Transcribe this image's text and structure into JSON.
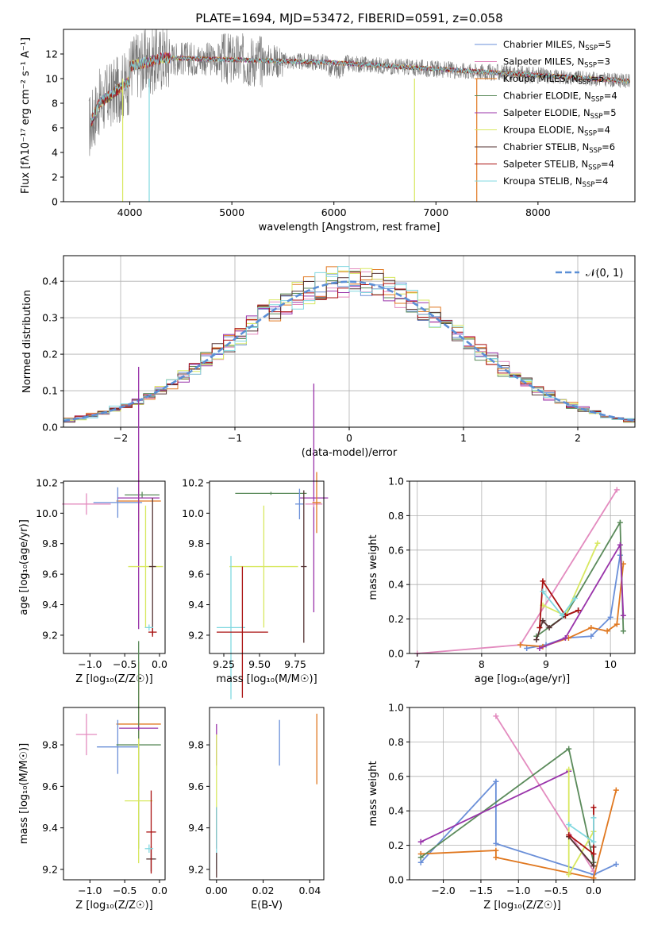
{
  "title": "PLATE=1694, MJD=53472, FIBERID=0591, z=0.058",
  "colors": {
    "Chabrier MILES": "#6a8fd8",
    "Salpeter MILES": "#e38bbf",
    "Kroupa MILES": "#e07820",
    "Chabrier ELODIE": "#5a8a5a",
    "Salpeter ELODIE": "#9933aa",
    "Kroupa ELODIE": "#d8e860",
    "Chabrier STELIB": "#553333",
    "Salpeter STELIB": "#aa1111",
    "Kroupa STELIB": "#80d8e0"
  },
  "chart_data": [
    {
      "id": "spectrum",
      "type": "line",
      "xlabel": "wavelength [Angstrom, rest frame]",
      "ylabel": "Flux [fλ10⁻¹⁷ erg cm⁻² s⁻¹ A⁻¹]",
      "xlim": [
        3350,
        8950
      ],
      "ylim": [
        0,
        14
      ],
      "xticks": [
        4000,
        5000,
        6000,
        7000,
        8000
      ],
      "yticks": [
        0,
        2,
        4,
        6,
        8,
        10,
        12
      ],
      "data_color": "#777777",
      "spectrum_x_range": [
        3600,
        8900
      ],
      "legend_position": "upper-right",
      "legend": [
        {
          "model": "Chabrier MILES",
          "base": "Chabrier MILES, N",
          "sub": "SSP",
          "tail": "=5"
        },
        {
          "model": "Salpeter MILES",
          "base": "Salpeter MILES, N",
          "sub": "SSP",
          "tail": "=3"
        },
        {
          "model": "Kroupa MILES",
          "base": "Kroupa MILES, N",
          "sub": "SSP",
          "tail": "=5"
        },
        {
          "model": "Chabrier ELODIE",
          "base": "Chabrier ELODIE, N",
          "sub": "SSP",
          "tail": "=4"
        },
        {
          "model": "Salpeter ELODIE",
          "base": "Salpeter ELODIE, N",
          "sub": "SSP",
          "tail": "=5"
        },
        {
          "model": "Kroupa ELODIE",
          "base": "Kroupa ELODIE, N",
          "sub": "SSP",
          "tail": "=4"
        },
        {
          "model": "Chabrier STELIB",
          "base": "Chabrier STELIB, N",
          "sub": "SSP",
          "tail": "=6"
        },
        {
          "model": "Salpeter STELIB",
          "base": "Salpeter STELIB, N",
          "sub": "SSP",
          "tail": "=4"
        },
        {
          "model": "Kroupa STELIB",
          "base": "Kroupa STELIB, N",
          "sub": "SSP",
          "tail": "=4"
        }
      ]
    },
    {
      "id": "residuals",
      "type": "line",
      "xlabel": "(data-model)/error",
      "ylabel": "Normed distribution",
      "xlim": [
        -2.5,
        2.5
      ],
      "ylim": [
        0,
        0.47
      ],
      "xticks": [
        -2,
        -1,
        0,
        1,
        2
      ],
      "yticks": [
        0.0,
        0.1,
        0.2,
        0.3,
        0.4
      ],
      "grid": true,
      "bin_width": 0.1,
      "gaussian_legend": "𝒩(0, 1)",
      "legend_position": "upper-right"
    },
    {
      "id": "age-vs-Z",
      "type": "scatter",
      "xlabel": "Z [log₁₀(Z/Z☉)]",
      "ylabel": "age  [log₁₀(age/yr)]",
      "xlim": [
        -1.38,
        0.08
      ],
      "ylim": [
        9.08,
        10.21
      ],
      "xticks": [
        -1.0,
        -0.5,
        0.0
      ],
      "yticks": [
        9.2,
        9.4,
        9.6,
        9.8,
        10.0,
        10.2
      ],
      "errorbars": [
        {
          "model": "Salpeter MILES",
          "x": -1.05,
          "y": 10.06,
          "xerr": 0.35,
          "yerr": 0.07
        },
        {
          "model": "Kroupa MILES",
          "x": -0.3,
          "y": 10.08,
          "xerr": 0.32,
          "yerr": 0.2
        },
        {
          "model": "Chabrier MILES",
          "x": -0.6,
          "y": 10.07,
          "xerr": 0.35,
          "yerr": 0.1
        },
        {
          "model": "Chabrier ELODIE",
          "x": -0.25,
          "y": 10.12,
          "xerr": 0.25,
          "yerr": 0.02
        },
        {
          "model": "Salpeter ELODIE",
          "x": -0.3,
          "y": 10.1,
          "xerr": 0.3,
          "yerr": 0.86
        },
        {
          "model": "Kroupa ELODIE",
          "x": -0.2,
          "y": 9.65,
          "xerr": 0.25,
          "yerr": 0.4
        },
        {
          "model": "Chabrier STELIB",
          "x": -0.1,
          "y": 9.65,
          "xerr": 0.05,
          "yerr": 0.45
        },
        {
          "model": "Salpeter STELIB",
          "x": -0.1,
          "y": 9.22,
          "xerr": 0.06,
          "yerr": 0.03
        },
        {
          "model": "Kroupa STELIB",
          "x": -0.15,
          "y": 9.25,
          "xerr": 0.06,
          "yerr": 0.02
        }
      ]
    },
    {
      "id": "age-vs-mass",
      "type": "scatter",
      "xlabel": "mass [log₁₀(M/M☉)]",
      "ylabel": "",
      "xlim": [
        9.15,
        9.95
      ],
      "ylim": [
        9.08,
        10.21
      ],
      "xticks": [
        9.25,
        9.5,
        9.75
      ],
      "yticks": [
        9.2,
        9.4,
        9.6,
        9.8,
        10.0,
        10.2
      ],
      "errorbars": [
        {
          "model": "Chabrier ELODIE",
          "x": 9.58,
          "y": 10.13,
          "xerr": 0.25,
          "yerr": 0.01
        },
        {
          "model": "Salpeter ELODIE",
          "x": 9.88,
          "y": 10.1,
          "xerr": 0.1,
          "yerr": 0.75
        },
        {
          "model": "Salpeter MILES",
          "x": 9.88,
          "y": 10.06,
          "xerr": 0.06,
          "yerr": 0.02
        },
        {
          "model": "Kroupa MILES",
          "x": 9.9,
          "y": 10.07,
          "xerr": 0.03,
          "yerr": 0.2
        },
        {
          "model": "Chabrier MILES",
          "x": 9.78,
          "y": 10.06,
          "xerr": 0.03,
          "yerr": 0.1
        },
        {
          "model": "Kroupa ELODIE",
          "x": 9.53,
          "y": 9.65,
          "xerr": 0.24,
          "yerr": 0.4
        },
        {
          "model": "Chabrier STELIB",
          "x": 9.81,
          "y": 9.65,
          "xerr": 0.02,
          "yerr": 0.5
        },
        {
          "model": "Kroupa STELIB",
          "x": 9.3,
          "y": 9.25,
          "xerr": 0.1,
          "yerr": 0.47
        },
        {
          "model": "Salpeter STELIB",
          "x": 9.38,
          "y": 9.22,
          "xerr": 0.18,
          "yerr": 0.43
        }
      ]
    },
    {
      "id": "mass-weight-vs-age",
      "type": "line",
      "xlabel": "age  [log₁₀(age/yr)]",
      "ylabel": "mass weight",
      "xlim": [
        6.88,
        10.38
      ],
      "ylim": [
        0,
        1.0
      ],
      "xticks": [
        7,
        8,
        9,
        10
      ],
      "yticks": [
        0.0,
        0.2,
        0.4,
        0.6,
        0.8,
        1.0
      ],
      "grid": true,
      "series": [
        {
          "model": "Salpeter MILES",
          "x": [
            7.0,
            8.6,
            10.1
          ],
          "y": [
            0.0,
            0.05,
            0.95
          ]
        },
        {
          "model": "Chabrier MILES",
          "x": [
            8.7,
            9.0,
            9.3,
            9.7,
            10.0,
            10.15
          ],
          "y": [
            0.03,
            0.05,
            0.09,
            0.1,
            0.21,
            0.57
          ]
        },
        {
          "model": "Kroupa MILES",
          "x": [
            8.6,
            8.95,
            9.35,
            9.7,
            9.95,
            10.1,
            10.2
          ],
          "y": [
            0.05,
            0.04,
            0.09,
            0.15,
            0.13,
            0.17,
            0.52
          ]
        },
        {
          "model": "Chabrier ELODIE",
          "x": [
            8.85,
            9.3,
            10.15,
            10.2
          ],
          "y": [
            0.1,
            0.22,
            0.76,
            0.13
          ]
        },
        {
          "model": "Salpeter ELODIE",
          "x": [
            8.9,
            9.3,
            10.15,
            10.2
          ],
          "y": [
            0.03,
            0.09,
            0.63,
            0.22
          ]
        },
        {
          "model": "Kroupa ELODIE",
          "x": [
            8.95,
            9.3,
            9.8
          ],
          "y": [
            0.28,
            0.22,
            0.64
          ]
        },
        {
          "model": "Chabrier STELIB",
          "x": [
            8.85,
            8.95,
            9.05,
            9.3,
            9.5
          ],
          "y": [
            0.08,
            0.19,
            0.15,
            0.22,
            0.25
          ]
        },
        {
          "model": "Salpeter STELIB",
          "x": [
            8.9,
            8.95,
            9.3,
            9.5
          ],
          "y": [
            0.15,
            0.42,
            0.22,
            0.25
          ]
        },
        {
          "model": "Kroupa STELIB",
          "x": [
            8.95,
            9.25,
            9.45
          ],
          "y": [
            0.36,
            0.22,
            0.32
          ]
        }
      ]
    },
    {
      "id": "mass-vs-Z",
      "type": "scatter",
      "xlabel": "Z [log₁₀(Z/Z☉)]",
      "ylabel": "mass [log₁₀(M/M☉)]",
      "xlim": [
        -1.38,
        0.08
      ],
      "ylim": [
        9.15,
        9.98
      ],
      "xticks": [
        -1.0,
        -0.5,
        0.0
      ],
      "yticks": [
        9.2,
        9.4,
        9.6,
        9.8
      ],
      "errorbars": [
        {
          "model": "Salpeter MILES",
          "x": -1.05,
          "y": 9.85,
          "xerr": 0.15,
          "yerr": 0.1
        },
        {
          "model": "Kroupa MILES",
          "x": -0.3,
          "y": 9.9,
          "xerr": 0.32,
          "yerr": 0.3
        },
        {
          "model": "Chabrier MILES",
          "x": -0.6,
          "y": 9.79,
          "xerr": 0.3,
          "yerr": 0.13
        },
        {
          "model": "Chabrier ELODIE",
          "x": -0.3,
          "y": 9.8,
          "xerr": 0.32,
          "yerr": 0.5
        },
        {
          "model": "Salpeter ELODIE",
          "x": -0.3,
          "y": 9.88,
          "xerr": 0.28,
          "yerr": 0.01
        },
        {
          "model": "Kroupa ELODIE",
          "x": -0.3,
          "y": 9.53,
          "xerr": 0.2,
          "yerr": 0.3
        },
        {
          "model": "Chabrier STELIB",
          "x": -0.12,
          "y": 9.25,
          "xerr": 0.07,
          "yerr": 0.06
        },
        {
          "model": "Salpeter STELIB",
          "x": -0.12,
          "y": 9.38,
          "xerr": 0.07,
          "yerr": 0.2
        },
        {
          "model": "Kroupa STELIB",
          "x": -0.15,
          "y": 9.3,
          "xerr": 0.06,
          "yerr": 0.02
        }
      ]
    },
    {
      "id": "mass-vs-EBV",
      "type": "scatter",
      "xlabel": "E(B-V)",
      "ylabel": "",
      "xlim": [
        -0.003,
        0.046
      ],
      "ylim": [
        9.15,
        9.98
      ],
      "xticks": [
        0.0,
        0.02,
        0.04
      ],
      "yticks": [
        9.2,
        9.4,
        9.6,
        9.8
      ],
      "errorbars": [
        {
          "model": "Chabrier MILES",
          "x": 0.027,
          "y": 9.81,
          "xerr": 0,
          "yerr": 0.11
        },
        {
          "model": "Kroupa MILES",
          "x": 0.043,
          "y": 9.78,
          "xerr": 0,
          "yerr": 0.17
        },
        {
          "model": "Salpeter ELODIE",
          "x": 0.0,
          "y": 9.8,
          "xerr": 0,
          "yerr": 0.1
        },
        {
          "model": "Kroupa ELODIE",
          "x": 0.0,
          "y": 9.6,
          "xerr": 0,
          "yerr": 0.25
        },
        {
          "model": "Salpeter STELIB",
          "x": 0.0,
          "y": 9.4,
          "xerr": 0,
          "yerr": 0.1
        },
        {
          "model": "Kroupa STELIB",
          "x": 0.0,
          "y": 9.35,
          "xerr": 0,
          "yerr": 0.15
        },
        {
          "model": "Chabrier STELIB",
          "x": 0.0,
          "y": 9.22,
          "xerr": 0,
          "yerr": 0.06
        }
      ]
    },
    {
      "id": "mass-weight-vs-Z",
      "type": "line",
      "xlabel": "Z [log₁₀(Z/Z☉)]",
      "ylabel": "mass weight",
      "xlim": [
        -2.45,
        0.55
      ],
      "ylim": [
        0,
        1.0
      ],
      "xticks": [
        -2.0,
        -1.5,
        -1.0,
        -0.5,
        0.0
      ],
      "yticks": [
        0.0,
        0.2,
        0.4,
        0.6,
        0.8,
        1.0
      ],
      "grid": true,
      "series": [
        {
          "model": "Chabrier MILES",
          "x": [
            -2.3,
            -1.3,
            -1.3,
            0.0,
            0.3
          ],
          "y": [
            0.1,
            0.57,
            0.21,
            0.03,
            0.09
          ]
        },
        {
          "model": "Salpeter MILES",
          "x": [
            -1.3,
            0.0
          ],
          "y": [
            0.95,
            0.05
          ]
        },
        {
          "model": "Kroupa MILES",
          "x": [
            -2.3,
            -1.3,
            -1.3,
            0.0,
            0.3
          ],
          "y": [
            0.15,
            0.17,
            0.13,
            0.01,
            0.52
          ]
        },
        {
          "model": "Chabrier ELODIE",
          "x": [
            -2.3,
            -0.33,
            0.0
          ],
          "y": [
            0.13,
            0.76,
            0.1
          ]
        },
        {
          "model": "Salpeter ELODIE",
          "x": [
            -2.3,
            -0.33
          ],
          "y": [
            0.22,
            0.63
          ]
        },
        {
          "model": "Kroupa ELODIE",
          "x": [
            -0.33,
            -0.33,
            0.0
          ],
          "y": [
            0.64,
            0.03,
            0.28
          ]
        },
        {
          "model": "Chabrier STELIB",
          "x": [
            -0.33,
            0.0,
            0.0
          ],
          "y": [
            0.25,
            0.08,
            0.19
          ]
        },
        {
          "model": "Salpeter STELIB",
          "x": [
            -0.33,
            0.0,
            0.0
          ],
          "y": [
            0.26,
            0.15,
            0.42
          ]
        },
        {
          "model": "Kroupa STELIB",
          "x": [
            -0.33,
            0.0,
            0.0
          ],
          "y": [
            0.32,
            0.22,
            0.36
          ]
        }
      ]
    }
  ]
}
